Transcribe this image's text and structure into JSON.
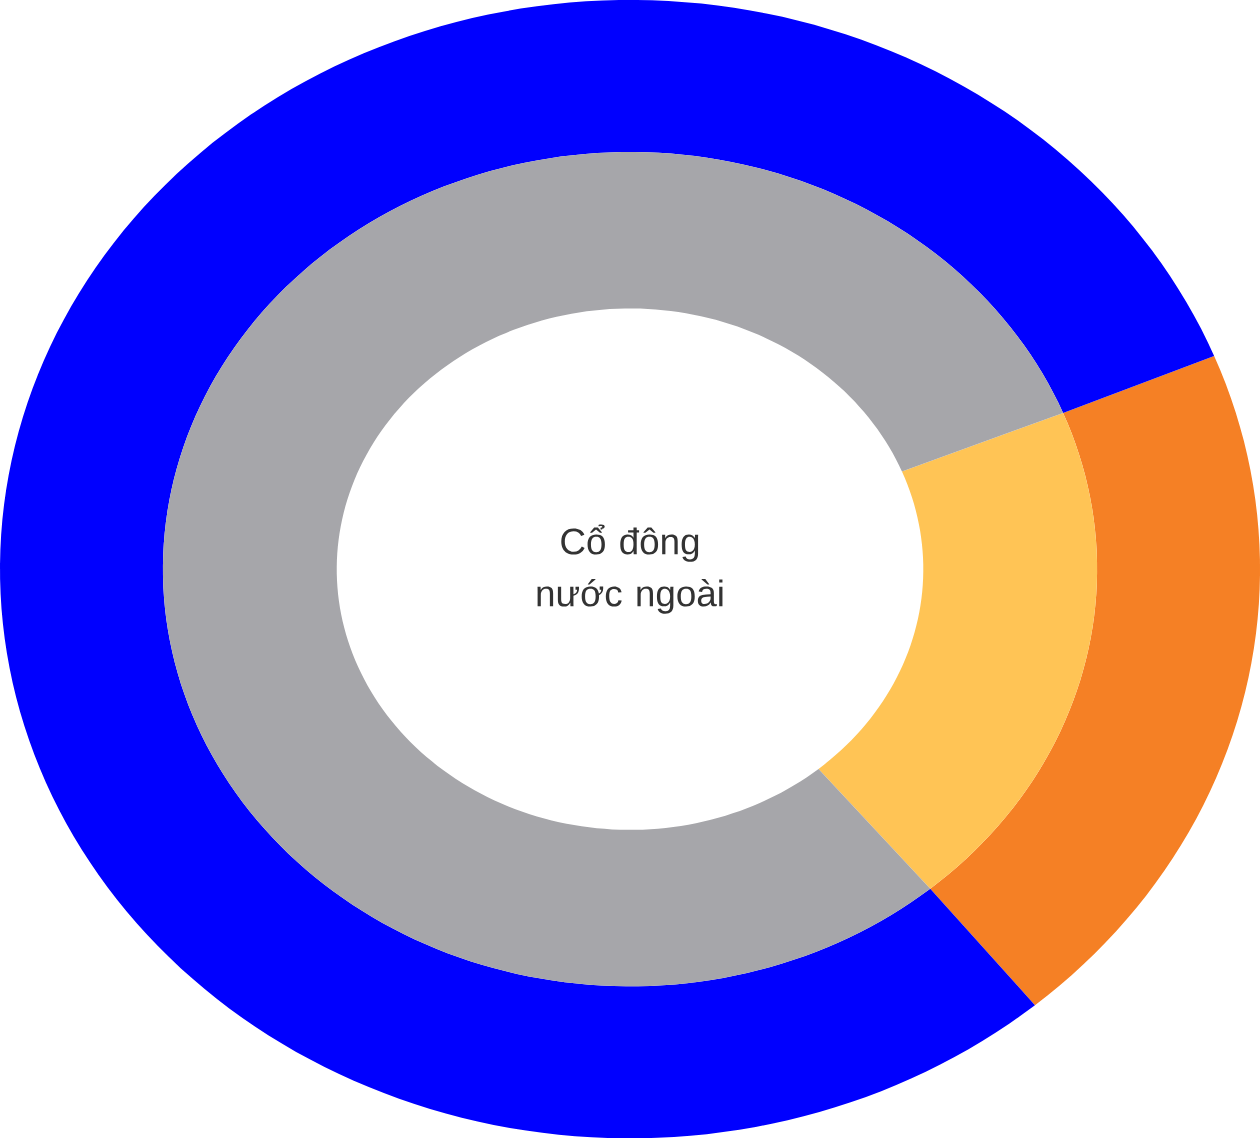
{
  "chart_data": {
    "type": "donut",
    "title": "Cổ đông nước ngoài",
    "categories": [
      null,
      null
    ],
    "series": [
      {
        "values": [
          20,
          80
        ],
        "colors": [
          "#f58025",
          "#0000ff"
        ]
      },
      {
        "values": [
          20,
          80
        ],
        "colors": [
          "#ffc455",
          "#a6a6aa"
        ]
      }
    ]
  }
}
